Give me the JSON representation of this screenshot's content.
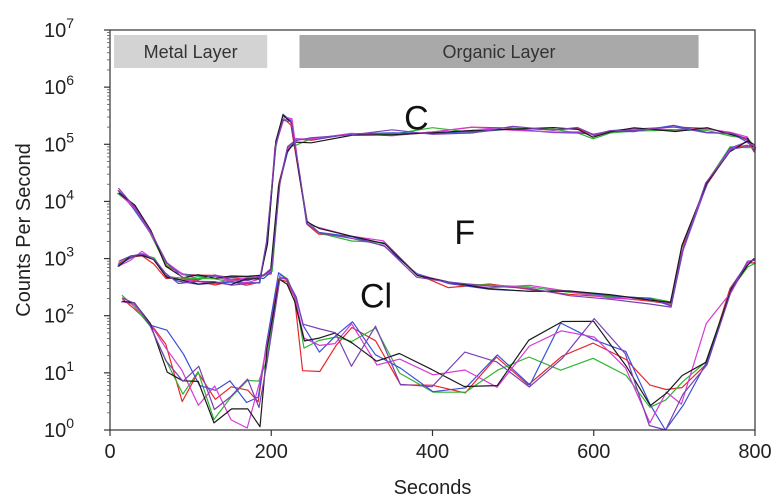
{
  "chart_data": {
    "type": "line",
    "title": "",
    "xlabel": "Seconds",
    "ylabel": "Counts Per Second",
    "xlim": [
      0,
      800
    ],
    "ylim": [
      1,
      10000000
    ],
    "yscale": "log",
    "x_ticks": [
      {
        "value": 0,
        "label": "0"
      },
      {
        "value": 200,
        "label": "200"
      },
      {
        "value": 400,
        "label": "400"
      },
      {
        "value": 600,
        "label": "600"
      },
      {
        "value": 800,
        "label": "800"
      }
    ],
    "y_ticks": [
      {
        "value": 1,
        "base": "10",
        "exp": "0"
      },
      {
        "value": 10,
        "base": "10",
        "exp": "1"
      },
      {
        "value": 100,
        "base": "10",
        "exp": "2"
      },
      {
        "value": 1000,
        "base": "10",
        "exp": "3"
      },
      {
        "value": 10000,
        "base": "10",
        "exp": "4"
      },
      {
        "value": 100000,
        "base": "10",
        "exp": "5"
      },
      {
        "value": 1000000,
        "base": "10",
        "exp": "6"
      },
      {
        "value": 10000000,
        "base": "10",
        "exp": "7"
      }
    ],
    "grid": false,
    "regions": [
      {
        "label": "Metal Layer",
        "x_start": 5,
        "x_end": 195,
        "color": "#d3d3d3"
      },
      {
        "label": "Organic Layer",
        "x_start": 235,
        "x_end": 730,
        "color": "#a9a9a9"
      }
    ],
    "trace_colors": [
      "#e8262a",
      "#2fb52f",
      "#3a4fd6",
      "#d63ad6",
      "#1a1a1a",
      "#7a3fb5"
    ],
    "series": [
      {
        "label": "C",
        "label_at": [
          380,
          180000
        ],
        "points": [
          [
            10,
            15000
          ],
          [
            30,
            8000
          ],
          [
            50,
            3000
          ],
          [
            70,
            800
          ],
          [
            90,
            500
          ],
          [
            110,
            480
          ],
          [
            130,
            470
          ],
          [
            150,
            460
          ],
          [
            170,
            460
          ],
          [
            190,
            470
          ],
          [
            200,
            600
          ],
          [
            210,
            20000
          ],
          [
            220,
            80000
          ],
          [
            230,
            110000
          ],
          [
            250,
            120000
          ],
          [
            300,
            140000
          ],
          [
            350,
            160000
          ],
          [
            400,
            170000
          ],
          [
            450,
            175000
          ],
          [
            500,
            180000
          ],
          [
            550,
            180000
          ],
          [
            580,
            175000
          ],
          [
            600,
            140000
          ],
          [
            620,
            160000
          ],
          [
            650,
            180000
          ],
          [
            700,
            190000
          ],
          [
            740,
            180000
          ],
          [
            770,
            160000
          ],
          [
            790,
            120000
          ],
          [
            800,
            80000
          ]
        ]
      },
      {
        "label": "F",
        "label_at": [
          440,
          1800
        ],
        "points": [
          [
            10,
            800
          ],
          [
            25,
            1000
          ],
          [
            40,
            1200
          ],
          [
            55,
            900
          ],
          [
            70,
            500
          ],
          [
            85,
            420
          ],
          [
            110,
            400
          ],
          [
            130,
            390
          ],
          [
            150,
            380
          ],
          [
            170,
            390
          ],
          [
            185,
            420
          ],
          [
            195,
            2000
          ],
          [
            205,
            100000
          ],
          [
            215,
            300000
          ],
          [
            225,
            250000
          ],
          [
            235,
            30000
          ],
          [
            245,
            4000
          ],
          [
            260,
            3000
          ],
          [
            300,
            2200
          ],
          [
            340,
            1800
          ],
          [
            380,
            500
          ],
          [
            420,
            350
          ],
          [
            470,
            320
          ],
          [
            520,
            300
          ],
          [
            570,
            250
          ],
          [
            620,
            220
          ],
          [
            670,
            180
          ],
          [
            695,
            160
          ],
          [
            710,
            1500
          ],
          [
            740,
            20000
          ],
          [
            770,
            80000
          ],
          [
            790,
            100000
          ],
          [
            800,
            90000
          ]
        ]
      },
      {
        "label": "Cl",
        "label_at": [
          330,
          140
        ],
        "points": [
          [
            15,
            200
          ],
          [
            30,
            150
          ],
          [
            50,
            70
          ],
          [
            70,
            20
          ],
          [
            90,
            8
          ],
          [
            110,
            5
          ],
          [
            130,
            3
          ],
          [
            150,
            4
          ],
          [
            170,
            3
          ],
          [
            185,
            3
          ],
          [
            195,
            30
          ],
          [
            210,
            500
          ],
          [
            220,
            400
          ],
          [
            230,
            200
          ],
          [
            240,
            30
          ],
          [
            260,
            25
          ],
          [
            280,
            35
          ],
          [
            300,
            30
          ],
          [
            330,
            25
          ],
          [
            360,
            15
          ],
          [
            400,
            12
          ],
          [
            440,
            10
          ],
          [
            480,
            8
          ],
          [
            520,
            15
          ],
          [
            560,
            30
          ],
          [
            600,
            35
          ],
          [
            640,
            20
          ],
          [
            670,
            3
          ],
          [
            690,
            2
          ],
          [
            710,
            5
          ],
          [
            740,
            30
          ],
          [
            770,
            300
          ],
          [
            790,
            800
          ],
          [
            800,
            900
          ]
        ]
      }
    ]
  }
}
